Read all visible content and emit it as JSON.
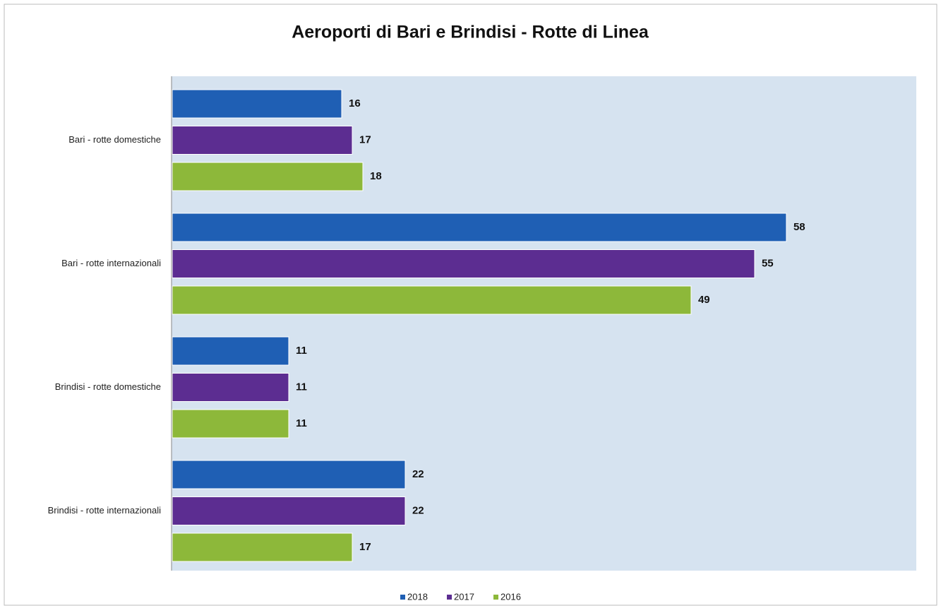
{
  "chart_data": {
    "type": "hbar",
    "title": "Aeroporti di Bari e Brindisi - Rotte di Linea",
    "categories": [
      "Bari - rotte domestiche",
      "Bari - rotte internazionali",
      "Brindisi - rotte domestiche",
      "Brindisi - rotte internazionali"
    ],
    "series": [
      {
        "name": "2018",
        "color": "#1f5fb4",
        "values": [
          16,
          58,
          11,
          22
        ]
      },
      {
        "name": "2017",
        "color": "#5c2d91",
        "values": [
          17,
          55,
          11,
          22
        ]
      },
      {
        "name": "2016",
        "color": "#8db83a",
        "values": [
          18,
          49,
          11,
          17
        ]
      }
    ],
    "legend": "bottom"
  }
}
